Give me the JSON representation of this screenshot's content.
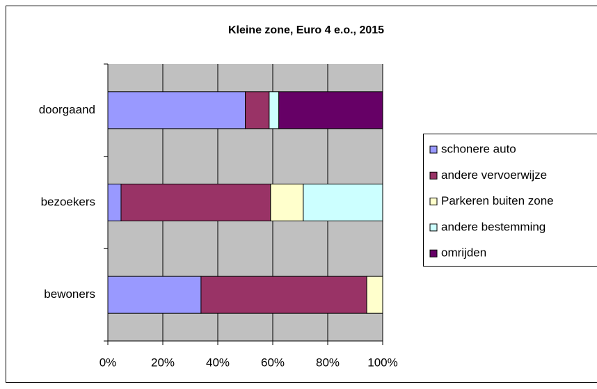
{
  "chart_data": {
    "type": "bar",
    "orientation": "horizontal",
    "stacked": true,
    "title": "Kleine zone, Euro 4 e.o., 2015",
    "categories": [
      "doorgaand",
      "bezoekers",
      "bewoners"
    ],
    "series": [
      {
        "name": "schonere auto",
        "color": "#9999ff",
        "values": [
          50,
          4.8,
          33.9
        ]
      },
      {
        "name": "andere vervoerwijze",
        "color": "#993366",
        "values": [
          8.7,
          54.4,
          60.3
        ]
      },
      {
        "name": "Parkeren buiten zone",
        "color": "#ffffcc",
        "values": [
          0,
          11.9,
          5.8
        ]
      },
      {
        "name": "andere bestemming",
        "color": "#ccffff",
        "values": [
          3.5,
          28.9,
          0
        ]
      },
      {
        "name": "omrijden",
        "color": "#660066",
        "values": [
          37.8,
          0,
          0
        ]
      }
    ],
    "xlim": [
      0,
      100
    ],
    "xticks": [
      {
        "value": 0,
        "label": "0%"
      },
      {
        "value": 20,
        "label": "20%"
      },
      {
        "value": 40,
        "label": "40%"
      },
      {
        "value": 60,
        "label": "60%"
      },
      {
        "value": 80,
        "label": "80%"
      },
      {
        "value": 100,
        "label": "100%"
      }
    ],
    "grid": true,
    "legend": "right"
  }
}
